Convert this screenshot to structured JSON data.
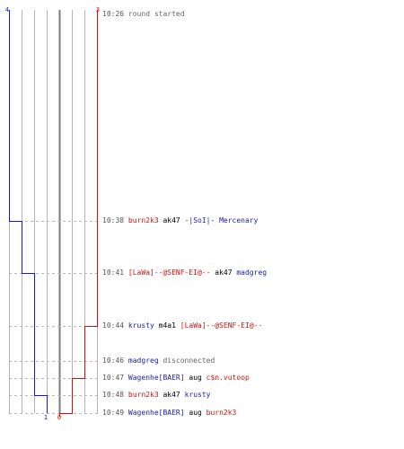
{
  "colors": {
    "team_blue": "#1a1ab4",
    "team_red": "#cc1111",
    "grid": "#b4b4b4",
    "center": "#7a7a7a",
    "dash": "#b8b8b8",
    "text": "#000000",
    "time": "#555555",
    "system": "#666666"
  },
  "scores": {
    "blue_start": "4",
    "red_start": "3",
    "blue_end": "1",
    "red_end": "0"
  },
  "events": [
    {
      "time": "10:26",
      "system": "round started"
    },
    {
      "time": "10:38",
      "killer": "burn2k3",
      "killer_team": "red",
      "weapon": "ak47",
      "victim": "-|SoI|- Mercenary",
      "victim_team": "blue",
      "blue_after": 3,
      "red_after": 3
    },
    {
      "time": "10:41",
      "killer": "[LaWa]--@SENF-EI@--",
      "killer_team": "red",
      "weapon": "ak47",
      "victim": "madgreg",
      "victim_team": "blue",
      "blue_after": 2,
      "red_after": 3
    },
    {
      "time": "10:44",
      "killer": "krusty",
      "killer_team": "blue",
      "weapon": "m4a1",
      "victim": "[LaWa]--@SENF-EI@--",
      "victim_team": "red",
      "blue_after": 2,
      "red_after": 2
    },
    {
      "time": "10:46",
      "player": "madgreg",
      "player_team": "blue",
      "system": "disconnected"
    },
    {
      "time": "10:47",
      "killer": "Wagenhe[BAER]",
      "killer_team": "blue",
      "weapon": "aug",
      "victim": "c$n.vutoop",
      "victim_team": "red",
      "blue_after": 2,
      "red_after": 1
    },
    {
      "time": "10:48",
      "killer": "burn2k3",
      "killer_team": "red",
      "weapon": "ak47",
      "victim": "krusty",
      "victim_team": "blue",
      "blue_after": 1,
      "red_after": 1
    },
    {
      "time": "10:49",
      "killer": "Wagenhe[BAER]",
      "killer_team": "blue",
      "weapon": "aug",
      "victim": "burn2k3",
      "victim_team": "red",
      "blue_after": 1,
      "red_after": 0
    }
  ]
}
